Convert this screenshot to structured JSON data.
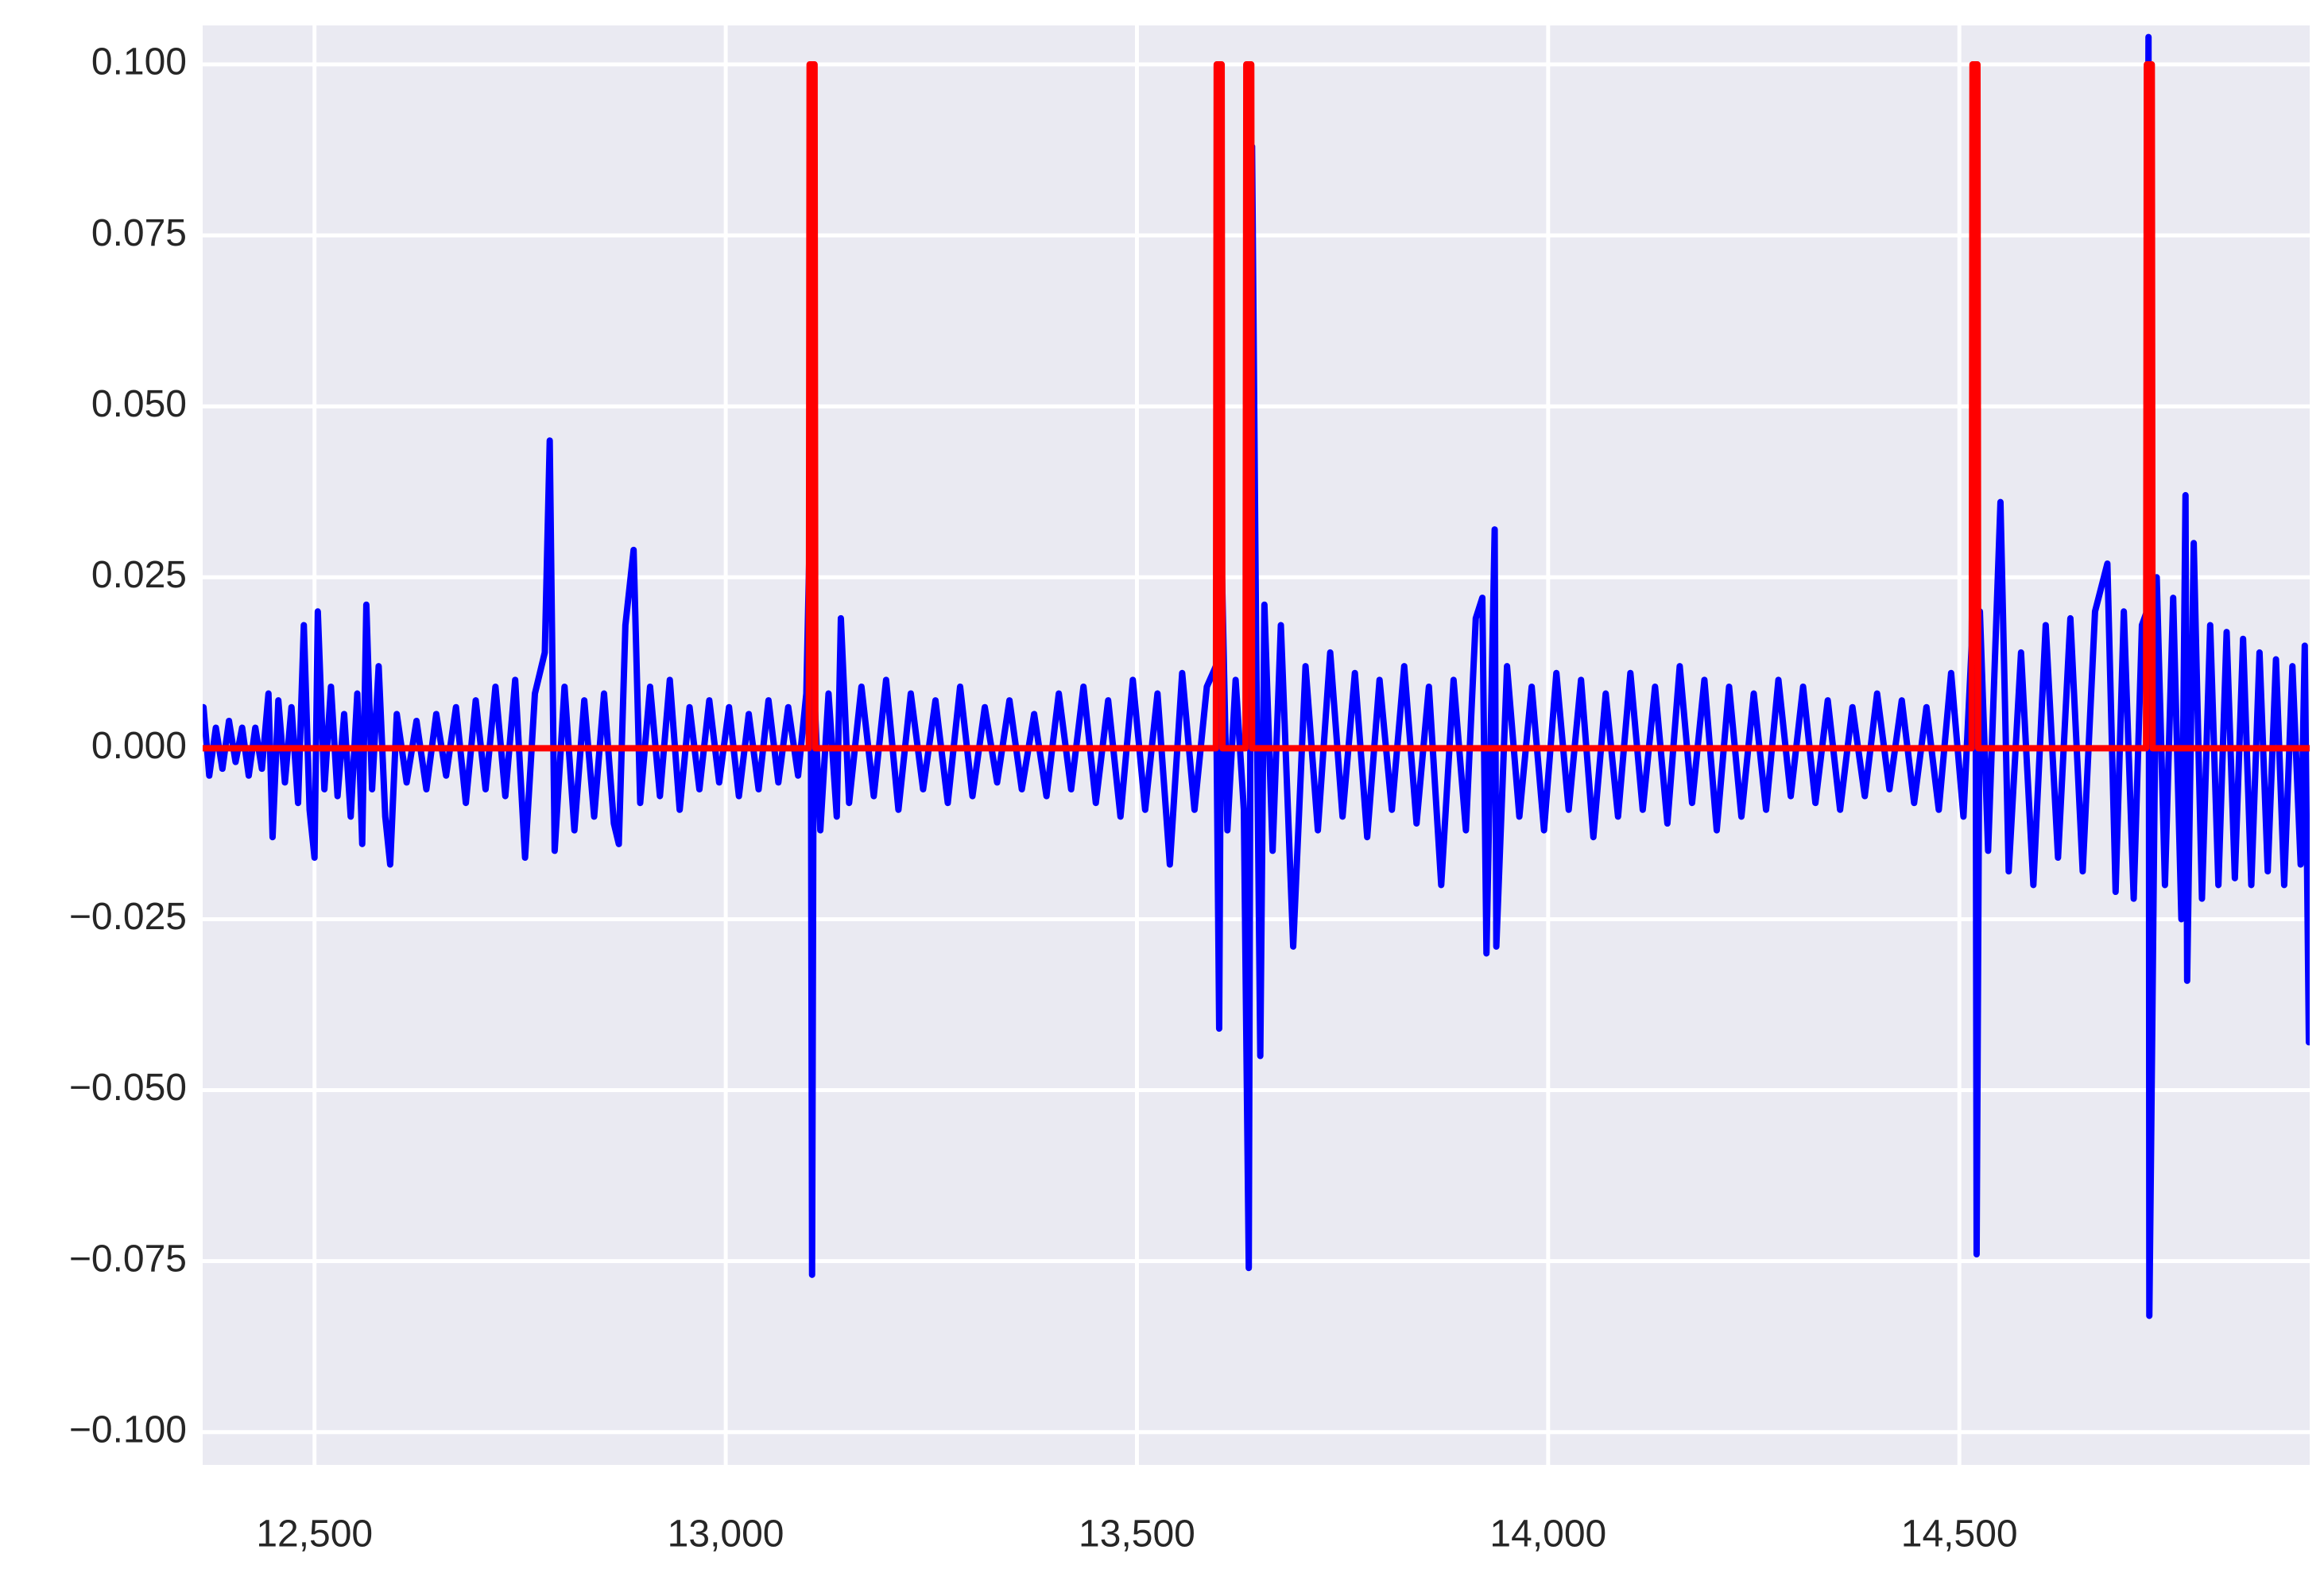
{
  "chart_data": {
    "type": "line",
    "grid": true,
    "xlim": [
      12364,
      14926
    ],
    "ylim": [
      -0.1048,
      0.1057
    ],
    "xticks": [
      {
        "value": 12500,
        "label": "12,500"
      },
      {
        "value": 13000,
        "label": "13,000"
      },
      {
        "value": 13500,
        "label": "13,500"
      },
      {
        "value": 14000,
        "label": "14,000"
      },
      {
        "value": 14500,
        "label": "14,500"
      }
    ],
    "yticks": [
      {
        "value": 0.1,
        "label": "0.100"
      },
      {
        "value": 0.075,
        "label": "0.075"
      },
      {
        "value": 0.05,
        "label": "0.050"
      },
      {
        "value": 0.025,
        "label": "0.025"
      },
      {
        "value": 0,
        "label": "0.000"
      },
      {
        "value": -0.025,
        "label": "−0.025"
      },
      {
        "value": -0.05,
        "label": "−0.050"
      },
      {
        "value": -0.075,
        "label": "−0.075"
      },
      {
        "value": -0.1,
        "label": "−0.100"
      }
    ],
    "series": [
      {
        "color": "#0000ff",
        "x": [
          12365,
          12372,
          12380,
          12388,
          12396,
          12404,
          12412,
          12420,
          12428,
          12436,
          12444,
          12449,
          12456,
          12464,
          12472,
          12480,
          12487,
          12494,
          12500,
          12504,
          12512,
          12520,
          12528,
          12536,
          12544,
          12552,
          12558,
          12563,
          12570,
          12578,
          12586,
          12592,
          12600,
          12612,
          12624,
          12636,
          12648,
          12660,
          12672,
          12684,
          12696,
          12708,
          12720,
          12732,
          12744,
          12756,
          12768,
          12780,
          12786,
          12792,
          12804,
          12816,
          12828,
          12840,
          12852,
          12864,
          12870,
          12878,
          12888,
          12896,
          12908,
          12920,
          12932,
          12944,
          12956,
          12968,
          12980,
          12992,
          13004,
          13016,
          13028,
          13040,
          13052,
          13064,
          13076,
          13088,
          13098,
          13103,
          13105,
          13107,
          13115,
          13125,
          13135,
          13140,
          13150,
          13165,
          13180,
          13195,
          13210,
          13225,
          13240,
          13255,
          13270,
          13285,
          13300,
          13315,
          13330,
          13345,
          13360,
          13375,
          13390,
          13405,
          13420,
          13435,
          13450,
          13465,
          13480,
          13495,
          13510,
          13525,
          13540,
          13555,
          13570,
          13585,
          13596,
          13600,
          13603,
          13610,
          13620,
          13630,
          13636,
          13640,
          13645,
          13650,
          13655,
          13665,
          13675,
          13690,
          13705,
          13720,
          13735,
          13750,
          13765,
          13780,
          13795,
          13810,
          13825,
          13840,
          13855,
          13870,
          13885,
          13900,
          13912,
          13920,
          13925,
          13935,
          13937,
          13950,
          13965,
          13980,
          13995,
          14010,
          14025,
          14040,
          14055,
          14070,
          14085,
          14100,
          14115,
          14130,
          14145,
          14160,
          14175,
          14190,
          14205,
          14220,
          14235,
          14250,
          14265,
          14280,
          14295,
          14310,
          14325,
          14340,
          14355,
          14370,
          14385,
          14400,
          14415,
          14430,
          14445,
          14460,
          14475,
          14490,
          14505,
          14515,
          14519,
          14521,
          14525,
          14535,
          14550,
          14560,
          14575,
          14590,
          14605,
          14620,
          14635,
          14650,
          14665,
          14680,
          14690,
          14700,
          14712,
          14722,
          14728,
          14730,
          14731,
          14733,
          14740,
          14750,
          14760,
          14770,
          14775,
          14777,
          14785,
          14795,
          14805,
          14815,
          14825,
          14835,
          14845,
          14855,
          14865,
          14875,
          14885,
          14895,
          14905,
          14915,
          14920,
          14925
        ],
        "values": [
          0.006,
          -0.004,
          0.003,
          -0.003,
          0.004,
          -0.002,
          0.003,
          -0.004,
          0.003,
          -0.003,
          0.008,
          -0.013,
          0.007,
          -0.005,
          0.006,
          -0.008,
          0.018,
          -0.009,
          -0.016,
          0.02,
          -0.006,
          0.009,
          -0.007,
          0.005,
          -0.01,
          0.008,
          -0.014,
          0.021,
          -0.006,
          0.012,
          -0.01,
          -0.017,
          0.005,
          -0.005,
          0.004,
          -0.006,
          0.005,
          -0.004,
          0.006,
          -0.008,
          0.007,
          -0.006,
          0.009,
          -0.007,
          0.01,
          -0.016,
          0.008,
          0.014,
          0.045,
          -0.015,
          0.009,
          -0.012,
          0.007,
          -0.01,
          0.008,
          -0.011,
          -0.014,
          0.018,
          0.029,
          -0.008,
          0.009,
          -0.007,
          0.01,
          -0.009,
          0.006,
          -0.006,
          0.007,
          -0.005,
          0.006,
          -0.007,
          0.005,
          -0.006,
          0.007,
          -0.005,
          0.006,
          -0.004,
          0.008,
          0.036,
          -0.077,
          0.01,
          -0.012,
          0.008,
          -0.01,
          0.019,
          -0.008,
          0.009,
          -0.007,
          0.01,
          -0.009,
          0.008,
          -0.006,
          0.007,
          -0.008,
          0.009,
          -0.007,
          0.006,
          -0.005,
          0.007,
          -0.006,
          0.005,
          -0.007,
          0.008,
          -0.006,
          0.009,
          -0.008,
          0.007,
          -0.01,
          0.01,
          -0.009,
          0.008,
          -0.017,
          0.011,
          -0.009,
          0.009,
          0.012,
          -0.041,
          0.028,
          -0.012,
          0.01,
          -0.009,
          -0.076,
          0.088,
          0.015,
          -0.045,
          0.021,
          -0.015,
          0.018,
          -0.029,
          0.012,
          -0.012,
          0.014,
          -0.01,
          0.011,
          -0.013,
          0.01,
          -0.009,
          0.012,
          -0.011,
          0.009,
          -0.02,
          0.01,
          -0.012,
          0.019,
          0.022,
          -0.03,
          0.032,
          -0.029,
          0.012,
          -0.01,
          0.009,
          -0.012,
          0.011,
          -0.009,
          0.01,
          -0.013,
          0.008,
          -0.01,
          0.011,
          -0.009,
          0.009,
          -0.011,
          0.012,
          -0.008,
          0.01,
          -0.012,
          0.009,
          -0.01,
          0.008,
          -0.009,
          0.01,
          -0.007,
          0.009,
          -0.008,
          0.007,
          -0.009,
          0.006,
          -0.007,
          0.008,
          -0.006,
          0.007,
          -0.008,
          0.006,
          -0.009,
          0.011,
          -0.01,
          0.015,
          0.078,
          -0.074,
          0.02,
          -0.015,
          0.036,
          -0.018,
          0.014,
          -0.02,
          0.018,
          -0.016,
          0.019,
          -0.018,
          0.02,
          0.027,
          -0.021,
          0.02,
          -0.022,
          0.018,
          0.02,
          0.104,
          -0.083,
          -0.06,
          0.025,
          -0.02,
          0.022,
          -0.025,
          0.037,
          -0.034,
          0.03,
          -0.022,
          0.018,
          -0.02,
          0.017,
          -0.019,
          0.016,
          -0.02,
          0.014,
          -0.018,
          0.013,
          -0.02,
          0.012,
          -0.017,
          0.015,
          -0.043
        ]
      },
      {
        "color": "#ff0000",
        "x": [
          12364,
          13101,
          13102,
          13108,
          13109,
          13596,
          13597,
          13603,
          13604,
          13632,
          13633,
          13639,
          13640,
          14515,
          14516,
          14522,
          14523,
          14727,
          14728,
          14734,
          14735,
          14926
        ],
        "values": [
          0,
          0,
          0.1,
          0.1,
          0,
          0,
          0.1,
          0.1,
          0,
          0,
          0.1,
          0.1,
          0,
          0,
          0.1,
          0.1,
          0,
          0,
          0.1,
          0.1,
          0,
          0
        ]
      }
    ]
  }
}
